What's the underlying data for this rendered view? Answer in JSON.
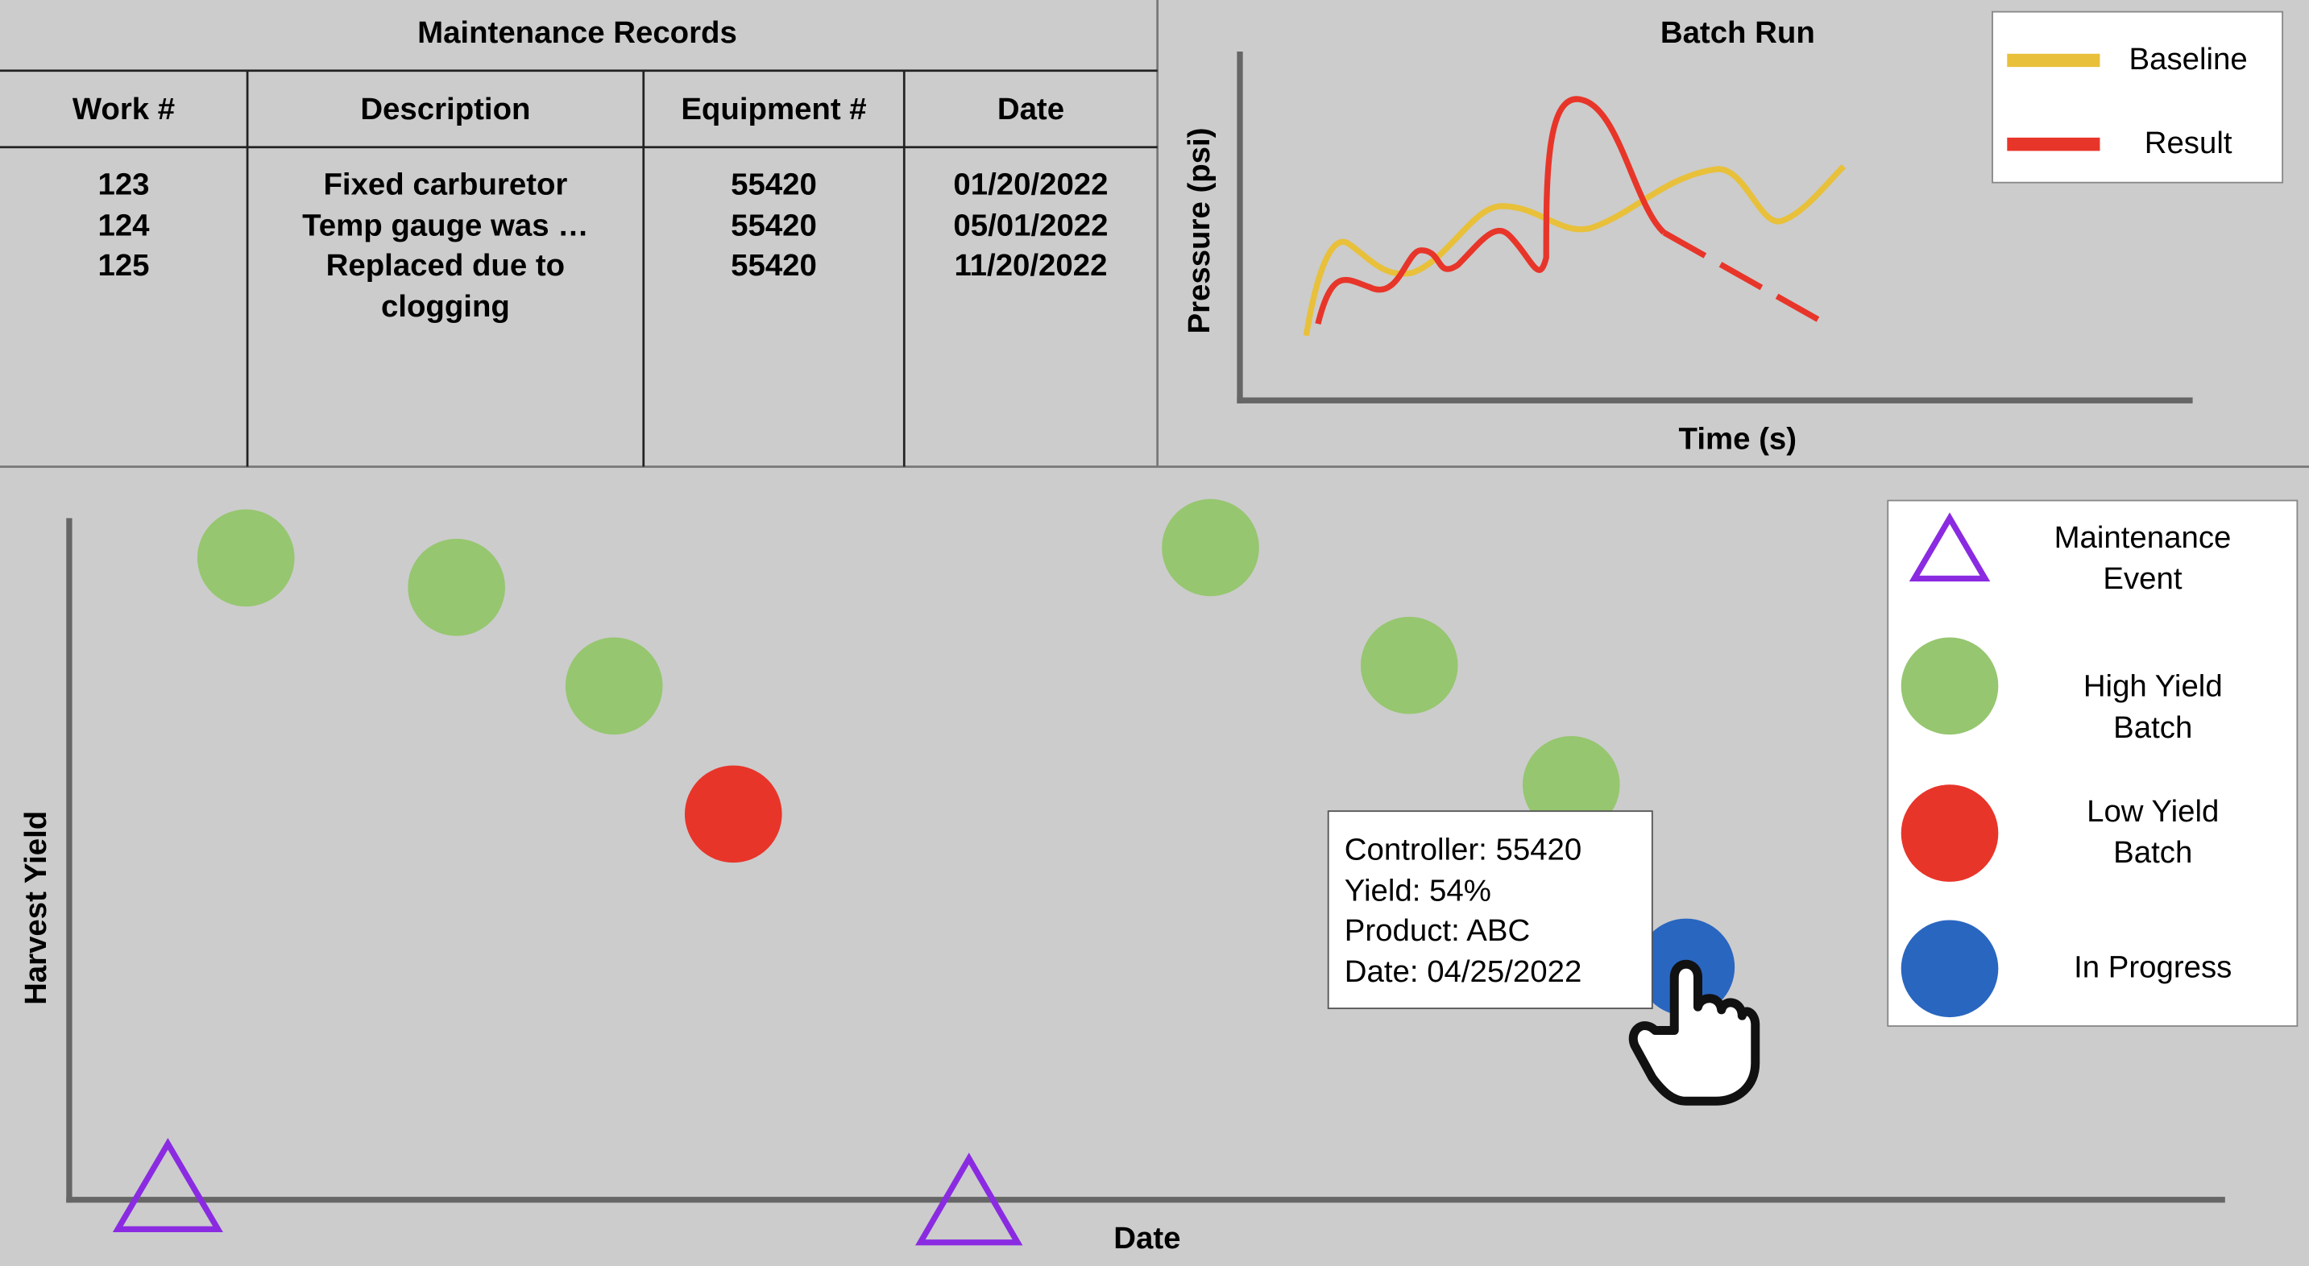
{
  "maintenance_records": {
    "title": "Maintenance Records",
    "columns": [
      "Work #",
      "Description",
      "Equipment #",
      "Date"
    ],
    "rows": [
      [
        "123",
        "Fixed carburetor",
        "55420",
        "01/20/2022"
      ],
      [
        "124",
        "Temp gauge was …",
        "55420",
        "05/01/2022"
      ],
      [
        "125",
        "Replaced due to clogging",
        "55420",
        "11/20/2022"
      ]
    ]
  },
  "batch_run": {
    "title": "Batch Run",
    "x_label": "Time (s)",
    "y_label": "Pressure (psi)",
    "legend": [
      "Baseline",
      "Result"
    ]
  },
  "harvest_chart": {
    "x_label": "Date",
    "y_label": "Harvest Yield",
    "legend": [
      "Maintenance Event",
      "High Yield Batch",
      "Low Yield Batch",
      "In Progress"
    ],
    "tooltip": [
      "Controller: 55420",
      "Yield: 54%",
      "Product: ABC",
      "Date: 04/25/2022"
    ]
  }
}
